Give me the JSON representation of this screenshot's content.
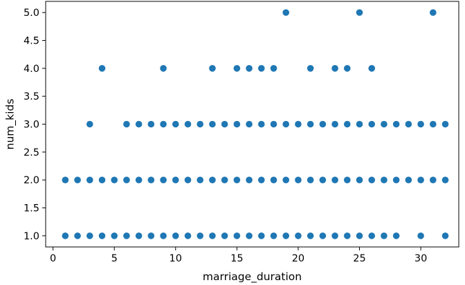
{
  "chart_data": {
    "type": "scatter",
    "xlabel": "marriage_duration",
    "ylabel": "num_kids",
    "xlim": [
      -0.6,
      33.1
    ],
    "ylim": [
      0.8,
      5.2
    ],
    "xticks": [
      0,
      5,
      10,
      15,
      20,
      25,
      30
    ],
    "xtick_labels": [
      "0",
      "5",
      "10",
      "15",
      "20",
      "25",
      "30"
    ],
    "yticks": [
      1.0,
      1.5,
      2.0,
      2.5,
      3.0,
      3.5,
      4.0,
      4.5,
      5.0
    ],
    "ytick_labels": [
      "1.0",
      "1.5",
      "2.0",
      "2.5",
      "3.0",
      "3.5",
      "4.0",
      "4.5",
      "5.0"
    ],
    "grid": false,
    "marker_color": "#1f77b4",
    "series": [
      {
        "points": [
          [
            1,
            1
          ],
          [
            2,
            1
          ],
          [
            3,
            1
          ],
          [
            4,
            1
          ],
          [
            5,
            1
          ],
          [
            6,
            1
          ],
          [
            7,
            1
          ],
          [
            8,
            1
          ],
          [
            9,
            1
          ],
          [
            10,
            1
          ],
          [
            11,
            1
          ],
          [
            12,
            1
          ],
          [
            13,
            1
          ],
          [
            14,
            1
          ],
          [
            15,
            1
          ],
          [
            16,
            1
          ],
          [
            17,
            1
          ],
          [
            18,
            1
          ],
          [
            19,
            1
          ],
          [
            20,
            1
          ],
          [
            21,
            1
          ],
          [
            22,
            1
          ],
          [
            23,
            1
          ],
          [
            24,
            1
          ],
          [
            25,
            1
          ],
          [
            26,
            1
          ],
          [
            27,
            1
          ],
          [
            28,
            1
          ],
          [
            30,
            1
          ],
          [
            32,
            1
          ],
          [
            1,
            2
          ],
          [
            2,
            2
          ],
          [
            3,
            2
          ],
          [
            4,
            2
          ],
          [
            5,
            2
          ],
          [
            6,
            2
          ],
          [
            7,
            2
          ],
          [
            8,
            2
          ],
          [
            9,
            2
          ],
          [
            10,
            2
          ],
          [
            11,
            2
          ],
          [
            12,
            2
          ],
          [
            13,
            2
          ],
          [
            14,
            2
          ],
          [
            15,
            2
          ],
          [
            16,
            2
          ],
          [
            17,
            2
          ],
          [
            18,
            2
          ],
          [
            19,
            2
          ],
          [
            20,
            2
          ],
          [
            21,
            2
          ],
          [
            22,
            2
          ],
          [
            23,
            2
          ],
          [
            24,
            2
          ],
          [
            25,
            2
          ],
          [
            26,
            2
          ],
          [
            27,
            2
          ],
          [
            28,
            2
          ],
          [
            29,
            2
          ],
          [
            30,
            2
          ],
          [
            31,
            2
          ],
          [
            32,
            2
          ],
          [
            3,
            3
          ],
          [
            6,
            3
          ],
          [
            7,
            3
          ],
          [
            8,
            3
          ],
          [
            9,
            3
          ],
          [
            10,
            3
          ],
          [
            11,
            3
          ],
          [
            12,
            3
          ],
          [
            13,
            3
          ],
          [
            14,
            3
          ],
          [
            15,
            3
          ],
          [
            16,
            3
          ],
          [
            17,
            3
          ],
          [
            18,
            3
          ],
          [
            19,
            3
          ],
          [
            20,
            3
          ],
          [
            21,
            3
          ],
          [
            22,
            3
          ],
          [
            23,
            3
          ],
          [
            24,
            3
          ],
          [
            25,
            3
          ],
          [
            26,
            3
          ],
          [
            27,
            3
          ],
          [
            28,
            3
          ],
          [
            29,
            3
          ],
          [
            30,
            3
          ],
          [
            31,
            3
          ],
          [
            32,
            3
          ],
          [
            4,
            4
          ],
          [
            9,
            4
          ],
          [
            13,
            4
          ],
          [
            15,
            4
          ],
          [
            16,
            4
          ],
          [
            17,
            4
          ],
          [
            18,
            4
          ],
          [
            21,
            4
          ],
          [
            23,
            4
          ],
          [
            24,
            4
          ],
          [
            26,
            4
          ],
          [
            19,
            5
          ],
          [
            25,
            5
          ],
          [
            31,
            5
          ]
        ]
      }
    ]
  }
}
